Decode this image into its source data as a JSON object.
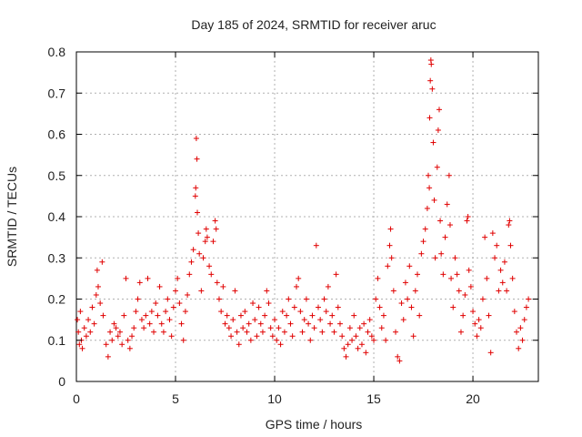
{
  "chart_data": {
    "type": "scatter",
    "title": "Day 185 of 2024, SRMTID for receiver aruc",
    "xlabel": "GPS time / hours",
    "ylabel": "SRMTID / TECUs",
    "xlim": [
      0,
      23.3
    ],
    "ylim": [
      0,
      0.8
    ],
    "xticks": [
      0,
      5,
      10,
      15,
      20
    ],
    "xtick_labels": [
      "0",
      "5",
      "10",
      "15",
      "20"
    ],
    "yticks": [
      0,
      0.1,
      0.2,
      0.3,
      0.4,
      0.5,
      0.6,
      0.7,
      0.8
    ],
    "ytick_labels": [
      "0",
      "0.1",
      "0.2",
      "0.3",
      "0.4",
      "0.5",
      "0.6",
      "0.7",
      "0.8"
    ],
    "grid": true,
    "marker": "+",
    "series": [
      {
        "name": "SRMTID",
        "color": "#e00000",
        "points": [
          [
            0.05,
            0.15
          ],
          [
            0.1,
            0.12
          ],
          [
            0.15,
            0.09
          ],
          [
            0.2,
            0.17
          ],
          [
            0.25,
            0.1
          ],
          [
            0.3,
            0.08
          ],
          [
            0.4,
            0.13
          ],
          [
            0.5,
            0.11
          ],
          [
            0.6,
            0.15
          ],
          [
            0.7,
            0.12
          ],
          [
            0.8,
            0.18
          ],
          [
            0.9,
            0.14
          ],
          [
            1.0,
            0.21
          ],
          [
            1.05,
            0.27
          ],
          [
            1.1,
            0.23
          ],
          [
            1.2,
            0.19
          ],
          [
            1.3,
            0.29
          ],
          [
            1.35,
            0.16
          ],
          [
            1.5,
            0.09
          ],
          [
            1.6,
            0.06
          ],
          [
            1.7,
            0.12
          ],
          [
            1.8,
            0.1
          ],
          [
            1.9,
            0.14
          ],
          [
            2.0,
            0.13
          ],
          [
            2.1,
            0.11
          ],
          [
            2.2,
            0.12
          ],
          [
            2.3,
            0.09
          ],
          [
            2.4,
            0.16
          ],
          [
            2.5,
            0.25
          ],
          [
            2.6,
            0.1
          ],
          [
            2.7,
            0.08
          ],
          [
            2.8,
            0.11
          ],
          [
            2.9,
            0.13
          ],
          [
            3.0,
            0.17
          ],
          [
            3.1,
            0.2
          ],
          [
            3.2,
            0.24
          ],
          [
            3.3,
            0.15
          ],
          [
            3.4,
            0.13
          ],
          [
            3.5,
            0.16
          ],
          [
            3.6,
            0.25
          ],
          [
            3.7,
            0.14
          ],
          [
            3.8,
            0.17
          ],
          [
            3.9,
            0.12
          ],
          [
            4.0,
            0.19
          ],
          [
            4.1,
            0.16
          ],
          [
            4.2,
            0.23
          ],
          [
            4.3,
            0.14
          ],
          [
            4.4,
            0.12
          ],
          [
            4.5,
            0.17
          ],
          [
            4.6,
            0.2
          ],
          [
            4.7,
            0.15
          ],
          [
            4.8,
            0.11
          ],
          [
            4.9,
            0.18
          ],
          [
            5.0,
            0.22
          ],
          [
            5.1,
            0.25
          ],
          [
            5.2,
            0.19
          ],
          [
            5.3,
            0.14
          ],
          [
            5.4,
            0.1
          ],
          [
            5.5,
            0.17
          ],
          [
            5.6,
            0.21
          ],
          [
            5.7,
            0.26
          ],
          [
            5.8,
            0.29
          ],
          [
            5.9,
            0.32
          ],
          [
            6.0,
            0.45
          ],
          [
            6.02,
            0.47
          ],
          [
            6.05,
            0.59
          ],
          [
            6.08,
            0.54
          ],
          [
            6.1,
            0.41
          ],
          [
            6.15,
            0.36
          ],
          [
            6.2,
            0.31
          ],
          [
            6.3,
            0.22
          ],
          [
            6.4,
            0.3
          ],
          [
            6.5,
            0.34
          ],
          [
            6.55,
            0.37
          ],
          [
            6.6,
            0.35
          ],
          [
            6.7,
            0.28
          ],
          [
            6.8,
            0.26
          ],
          [
            6.9,
            0.34
          ],
          [
            7.0,
            0.39
          ],
          [
            7.05,
            0.37
          ],
          [
            7.1,
            0.24
          ],
          [
            7.2,
            0.2
          ],
          [
            7.3,
            0.17
          ],
          [
            7.4,
            0.23
          ],
          [
            7.5,
            0.14
          ],
          [
            7.6,
            0.16
          ],
          [
            7.7,
            0.13
          ],
          [
            7.8,
            0.11
          ],
          [
            7.9,
            0.15
          ],
          [
            8.0,
            0.22
          ],
          [
            8.1,
            0.12
          ],
          [
            8.2,
            0.09
          ],
          [
            8.3,
            0.16
          ],
          [
            8.4,
            0.13
          ],
          [
            8.5,
            0.17
          ],
          [
            8.6,
            0.12
          ],
          [
            8.7,
            0.14
          ],
          [
            8.8,
            0.1
          ],
          [
            8.9,
            0.19
          ],
          [
            9.0,
            0.15
          ],
          [
            9.1,
            0.11
          ],
          [
            9.2,
            0.18
          ],
          [
            9.3,
            0.14
          ],
          [
            9.4,
            0.12
          ],
          [
            9.5,
            0.16
          ],
          [
            9.6,
            0.22
          ],
          [
            9.7,
            0.19
          ],
          [
            9.8,
            0.13
          ],
          [
            9.9,
            0.11
          ],
          [
            10.0,
            0.15
          ],
          [
            10.1,
            0.1
          ],
          [
            10.2,
            0.13
          ],
          [
            10.3,
            0.09
          ],
          [
            10.4,
            0.17
          ],
          [
            10.5,
            0.12
          ],
          [
            10.6,
            0.16
          ],
          [
            10.7,
            0.2
          ],
          [
            10.8,
            0.14
          ],
          [
            10.9,
            0.11
          ],
          [
            11.0,
            0.18
          ],
          [
            11.1,
            0.23
          ],
          [
            11.2,
            0.25
          ],
          [
            11.3,
            0.17
          ],
          [
            11.4,
            0.12
          ],
          [
            11.5,
            0.15
          ],
          [
            11.6,
            0.2
          ],
          [
            11.7,
            0.14
          ],
          [
            11.8,
            0.1
          ],
          [
            11.9,
            0.16
          ],
          [
            12.0,
            0.13
          ],
          [
            12.1,
            0.33
          ],
          [
            12.2,
            0.18
          ],
          [
            12.3,
            0.15
          ],
          [
            12.4,
            0.12
          ],
          [
            12.5,
            0.2
          ],
          [
            12.6,
            0.17
          ],
          [
            12.7,
            0.23
          ],
          [
            12.8,
            0.14
          ],
          [
            12.9,
            0.16
          ],
          [
            13.0,
            0.12
          ],
          [
            13.1,
            0.26
          ],
          [
            13.2,
            0.18
          ],
          [
            13.3,
            0.14
          ],
          [
            13.4,
            0.11
          ],
          [
            13.5,
            0.08
          ],
          [
            13.6,
            0.06
          ],
          [
            13.7,
            0.09
          ],
          [
            13.8,
            0.13
          ],
          [
            13.9,
            0.1
          ],
          [
            14.0,
            0.16
          ],
          [
            14.1,
            0.11
          ],
          [
            14.2,
            0.08
          ],
          [
            14.3,
            0.13
          ],
          [
            14.4,
            0.09
          ],
          [
            14.5,
            0.14
          ],
          [
            14.6,
            0.07
          ],
          [
            14.7,
            0.12
          ],
          [
            14.8,
            0.15
          ],
          [
            14.9,
            0.11
          ],
          [
            15.0,
            0.1
          ],
          [
            15.1,
            0.2
          ],
          [
            15.2,
            0.25
          ],
          [
            15.3,
            0.18
          ],
          [
            15.4,
            0.13
          ],
          [
            15.5,
            0.16
          ],
          [
            15.6,
            0.1
          ],
          [
            15.7,
            0.28
          ],
          [
            15.8,
            0.33
          ],
          [
            15.85,
            0.37
          ],
          [
            15.9,
            0.3
          ],
          [
            16.0,
            0.22
          ],
          [
            16.1,
            0.12
          ],
          [
            16.2,
            0.06
          ],
          [
            16.3,
            0.05
          ],
          [
            16.4,
            0.19
          ],
          [
            16.5,
            0.15
          ],
          [
            16.6,
            0.24
          ],
          [
            16.7,
            0.2
          ],
          [
            16.8,
            0.28
          ],
          [
            16.9,
            0.18
          ],
          [
            17.0,
            0.11
          ],
          [
            17.1,
            0.22
          ],
          [
            17.2,
            0.26
          ],
          [
            17.3,
            0.16
          ],
          [
            17.4,
            0.31
          ],
          [
            17.5,
            0.34
          ],
          [
            17.6,
            0.37
          ],
          [
            17.7,
            0.42
          ],
          [
            17.75,
            0.5
          ],
          [
            17.8,
            0.47
          ],
          [
            17.82,
            0.64
          ],
          [
            17.85,
            0.73
          ],
          [
            17.88,
            0.78
          ],
          [
            17.9,
            0.77
          ],
          [
            17.95,
            0.71
          ],
          [
            18.0,
            0.58
          ],
          [
            18.05,
            0.44
          ],
          [
            18.1,
            0.3
          ],
          [
            18.2,
            0.52
          ],
          [
            18.25,
            0.61
          ],
          [
            18.3,
            0.66
          ],
          [
            18.35,
            0.39
          ],
          [
            18.4,
            0.31
          ],
          [
            18.5,
            0.26
          ],
          [
            18.6,
            0.35
          ],
          [
            18.7,
            0.43
          ],
          [
            18.8,
            0.5
          ],
          [
            18.85,
            0.38
          ],
          [
            18.9,
            0.25
          ],
          [
            19.0,
            0.18
          ],
          [
            19.1,
            0.3
          ],
          [
            19.2,
            0.26
          ],
          [
            19.3,
            0.22
          ],
          [
            19.4,
            0.12
          ],
          [
            19.5,
            0.16
          ],
          [
            19.6,
            0.21
          ],
          [
            19.7,
            0.39
          ],
          [
            19.75,
            0.4
          ],
          [
            19.8,
            0.27
          ],
          [
            19.9,
            0.23
          ],
          [
            20.0,
            0.17
          ],
          [
            20.1,
            0.14
          ],
          [
            20.2,
            0.11
          ],
          [
            20.3,
            0.15
          ],
          [
            20.4,
            0.13
          ],
          [
            20.5,
            0.2
          ],
          [
            20.6,
            0.35
          ],
          [
            20.7,
            0.25
          ],
          [
            20.8,
            0.16
          ],
          [
            20.9,
            0.07
          ],
          [
            21.0,
            0.36
          ],
          [
            21.1,
            0.3
          ],
          [
            21.2,
            0.33
          ],
          [
            21.3,
            0.22
          ],
          [
            21.4,
            0.27
          ],
          [
            21.5,
            0.24
          ],
          [
            21.6,
            0.29
          ],
          [
            21.7,
            0.22
          ],
          [
            21.8,
            0.38
          ],
          [
            21.85,
            0.39
          ],
          [
            21.9,
            0.33
          ],
          [
            22.0,
            0.25
          ],
          [
            22.1,
            0.17
          ],
          [
            22.2,
            0.12
          ],
          [
            22.3,
            0.08
          ],
          [
            22.4,
            0.13
          ],
          [
            22.5,
            0.1
          ],
          [
            22.6,
            0.15
          ],
          [
            22.7,
            0.18
          ],
          [
            22.8,
            0.2
          ]
        ]
      }
    ]
  }
}
